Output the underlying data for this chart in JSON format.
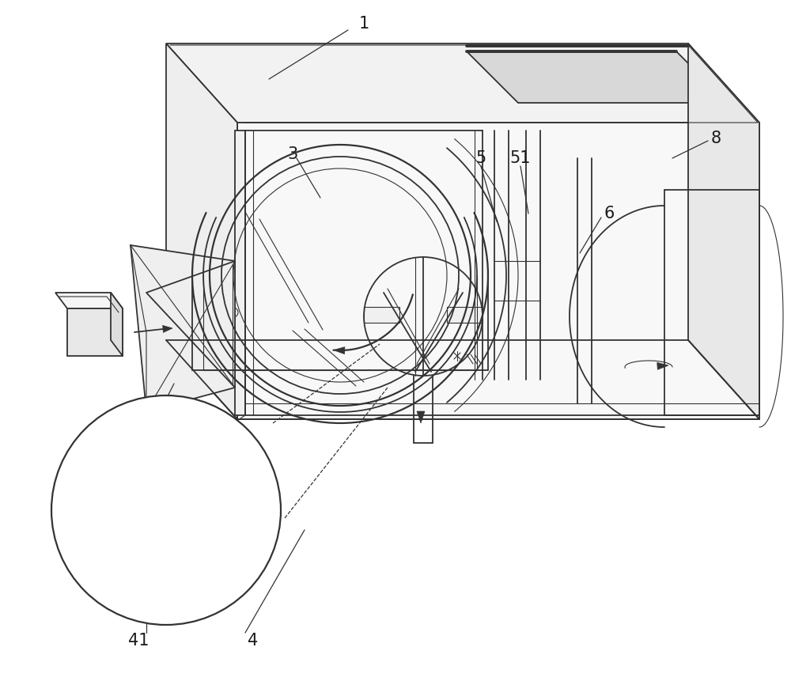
{
  "background_color": "#ffffff",
  "line_color": "#333333",
  "lw": 1.3,
  "lw_thick": 2.8,
  "lw_thin": 0.8,
  "figsize": [
    10.0,
    8.61
  ],
  "dpi": 100,
  "label_fontsize": 15
}
